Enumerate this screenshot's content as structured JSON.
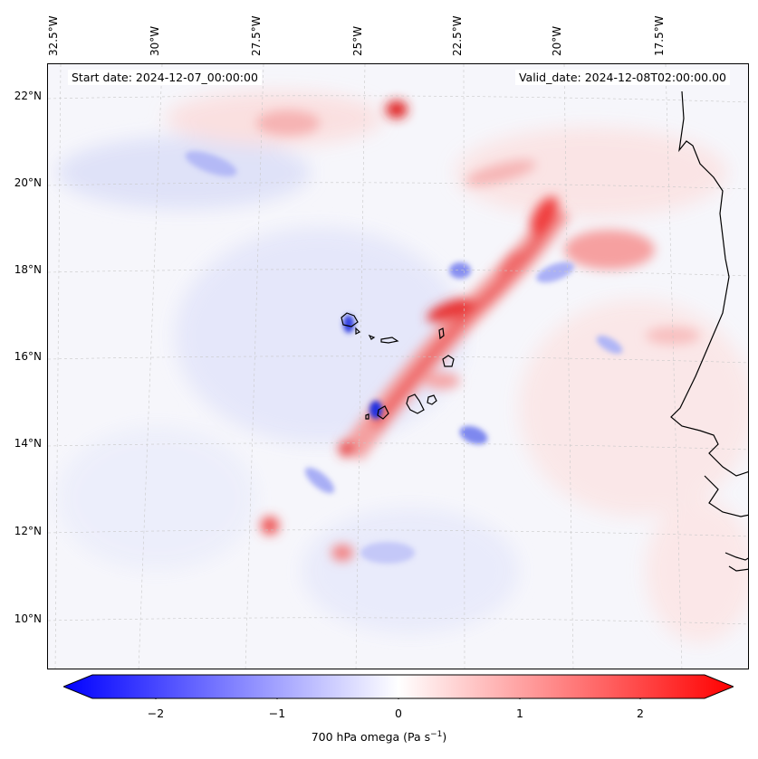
{
  "map": {
    "start_label": "Start date: 2024-12-07_00:00:00",
    "valid_label": "Valid_date: 2024-12-08T02:00:00.00",
    "longitude_labels": [
      "32.5°W",
      "30°W",
      "27.5°W",
      "25°W",
      "22.5°W",
      "20°W",
      "17.5°W"
    ],
    "latitude_labels": [
      "22°N",
      "20°N",
      "18°N",
      "16°N",
      "14°N",
      "12°N",
      "10°N"
    ],
    "colors": {
      "positive": "#ff0000",
      "negative": "#0000ff",
      "neutral": "#ffffff",
      "coastline": "#000000",
      "gridline": "#bbbbbb"
    }
  },
  "colorbar": {
    "tick_labels": [
      "−2",
      "−1",
      "0",
      "1",
      "2"
    ],
    "label": "700 hPa omega (Pa s",
    "label_exponent": "−1",
    "label_close": ")",
    "range": [
      -2.6,
      2.6
    ],
    "extend": "both"
  }
}
